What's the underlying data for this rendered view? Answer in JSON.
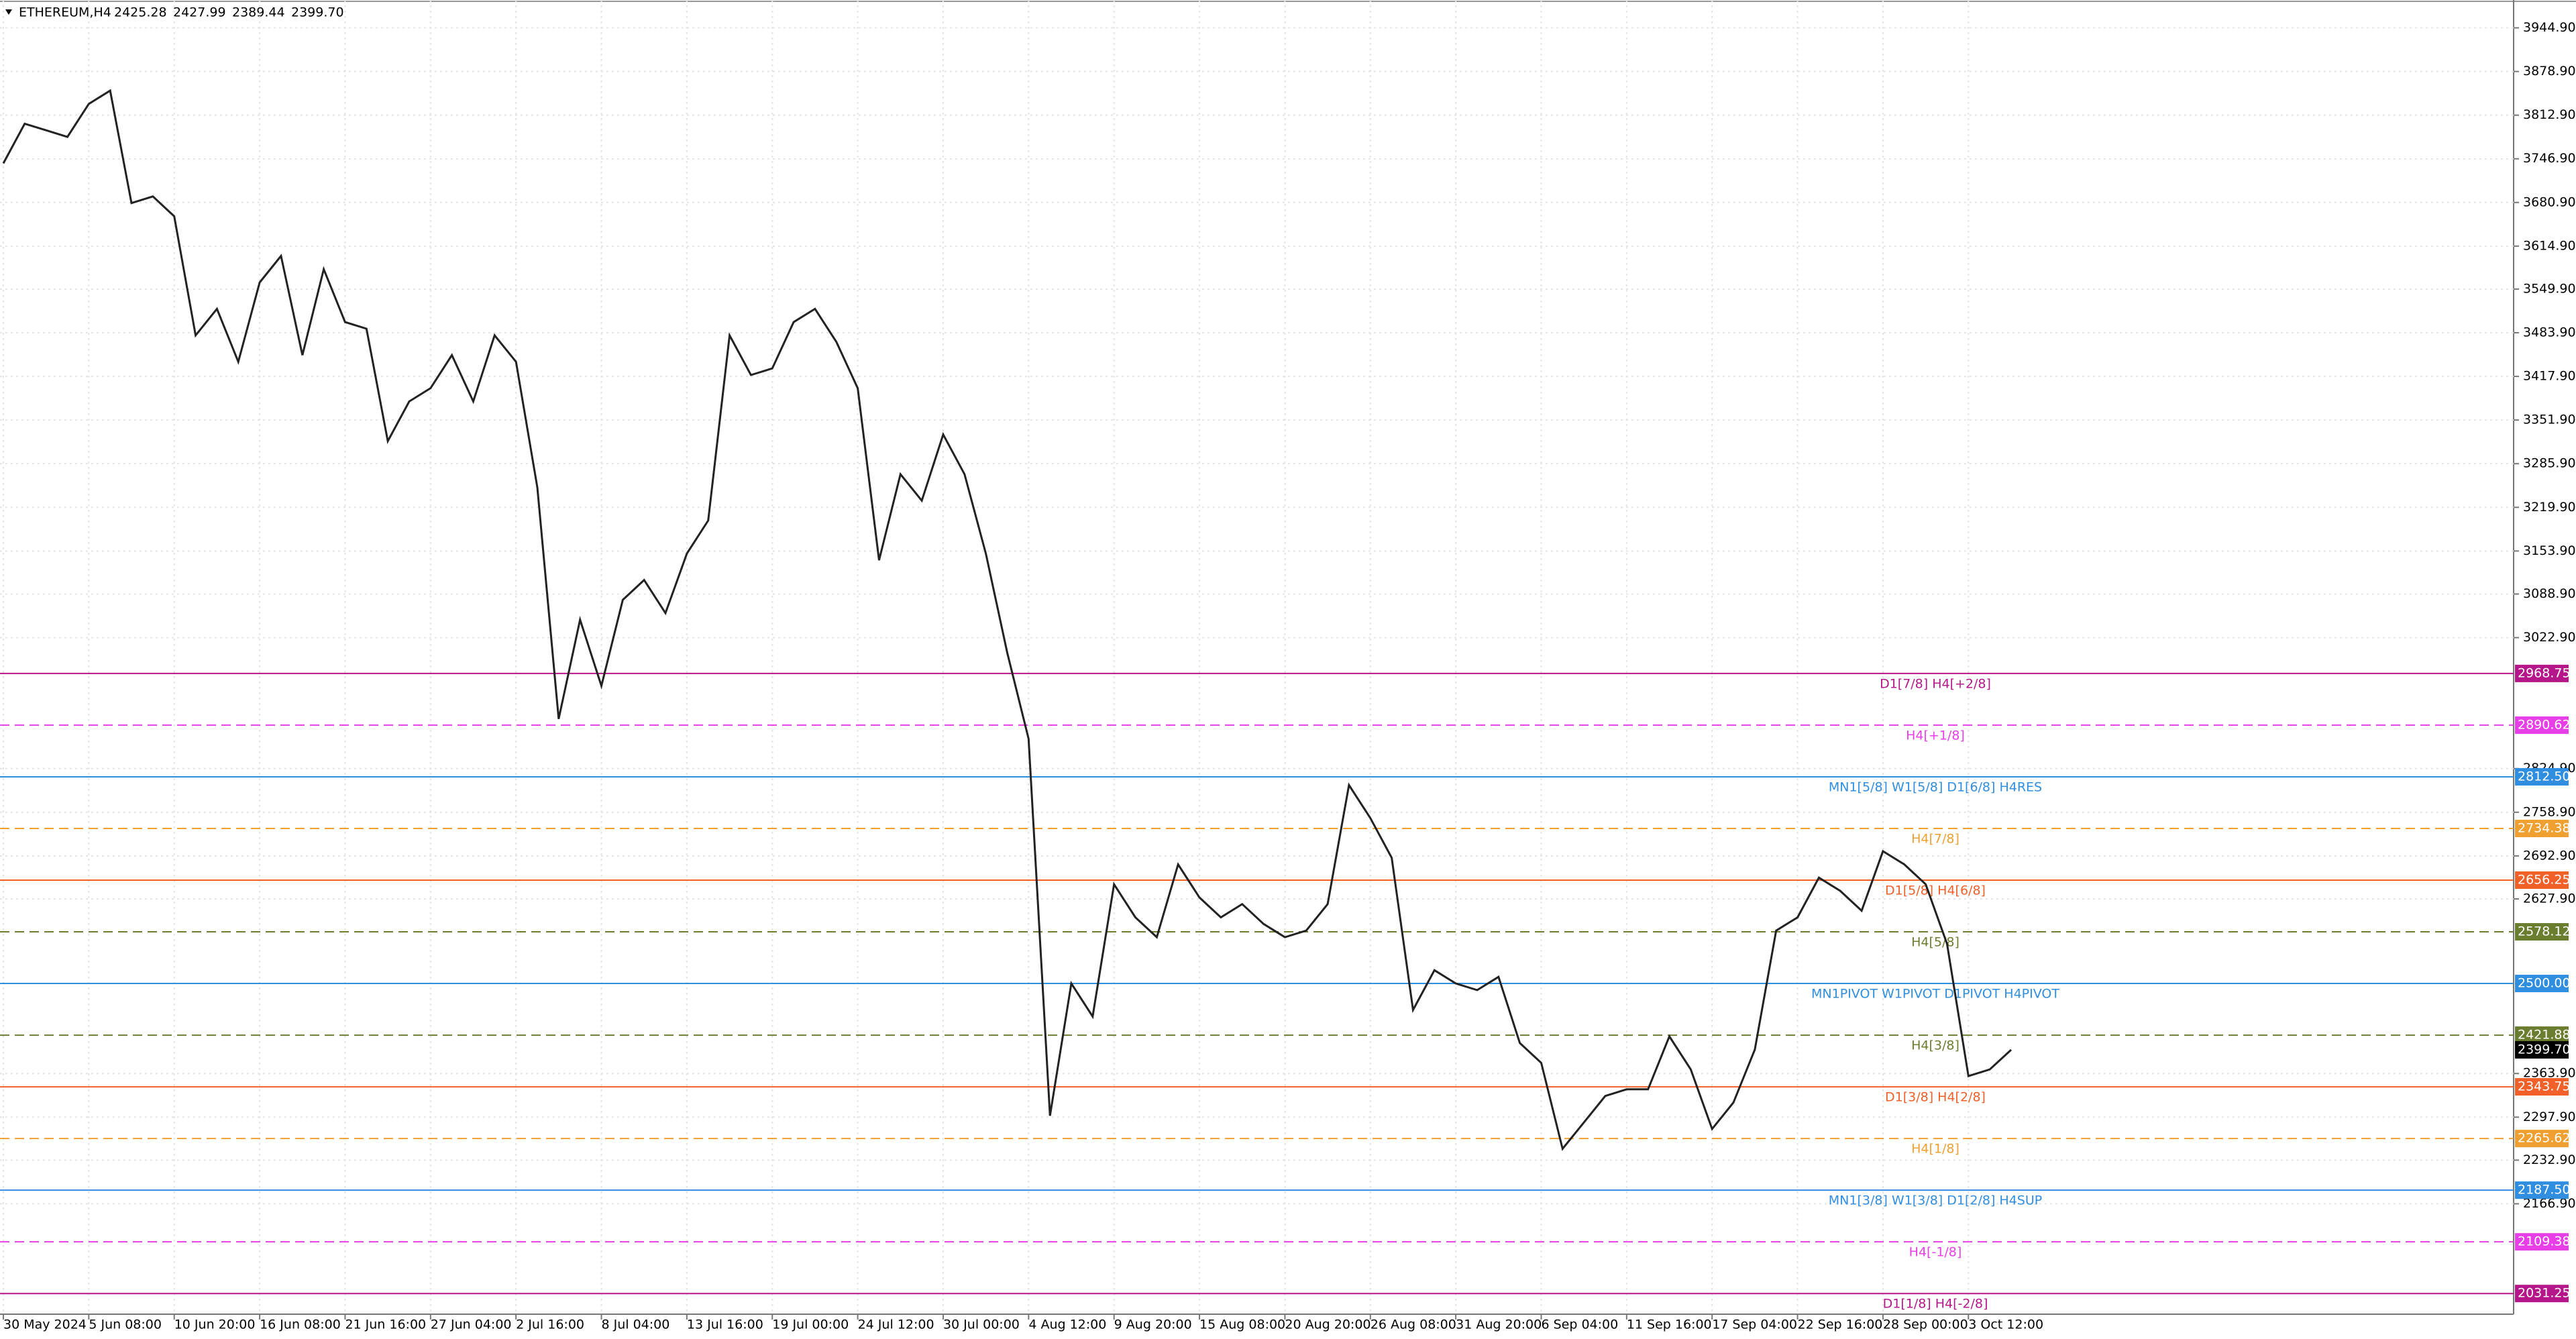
{
  "chart_data": {
    "type": "line",
    "header": {
      "symbol": "ETHEREUM,H4",
      "ohlc": [
        "2425.28",
        "2427.99",
        "2389.44",
        "2399.70"
      ]
    },
    "categories": [
      "30 May 2024",
      null,
      null,
      null,
      "5 Jun 08:00",
      null,
      null,
      null,
      "10 Jun 20:00",
      null,
      null,
      null,
      "16 Jun 08:00",
      null,
      null,
      null,
      "21 Jun 16:00",
      null,
      null,
      null,
      "27 Jun 04:00",
      null,
      null,
      null,
      "2 Jul 16:00",
      null,
      null,
      null,
      "8 Jul 04:00",
      null,
      null,
      null,
      "13 Jul 16:00",
      null,
      null,
      null,
      "19 Jul 00:00",
      null,
      null,
      null,
      "24 Jul 12:00",
      null,
      null,
      null,
      "30 Jul 00:00",
      null,
      null,
      null,
      "4 Aug 12:00",
      null,
      null,
      null,
      "9 Aug 20:00",
      null,
      null,
      null,
      "15 Aug 08:00",
      null,
      null,
      null,
      "20 Aug 20:00",
      null,
      null,
      null,
      "26 Aug 08:00",
      null,
      null,
      null,
      "31 Aug 20:00",
      null,
      null,
      null,
      "6 Sep 04:00",
      null,
      null,
      null,
      "11 Sep 16:00",
      null,
      null,
      null,
      "17 Sep 04:00",
      null,
      null,
      null,
      "22 Sep 16:00",
      null,
      null,
      null,
      "28 Sep 00:00",
      null,
      null,
      null,
      "3 Oct 12:00",
      null,
      null
    ],
    "series": [
      {
        "name": "ETHEREUM,H4",
        "color": "#222222",
        "values": [
          3740,
          3800,
          3790,
          3780,
          3830,
          3850,
          3680,
          3690,
          3660,
          3480,
          3520,
          3440,
          3560,
          3600,
          3450,
          3580,
          3500,
          3490,
          3320,
          3380,
          3400,
          3450,
          3380,
          3480,
          3440,
          3250,
          2900,
          3050,
          2950,
          3080,
          3110,
          3060,
          3150,
          3200,
          3480,
          3420,
          3430,
          3500,
          3520,
          3470,
          3400,
          3140,
          3270,
          3230,
          3330,
          3270,
          3150,
          3000,
          2870,
          2300,
          2500,
          2450,
          2650,
          2600,
          2570,
          2680,
          2630,
          2600,
          2620,
          2590,
          2570,
          2580,
          2620,
          2800,
          2750,
          2690,
          2460,
          2520,
          2500,
          2490,
          2510,
          2410,
          2380,
          2250,
          2290,
          2330,
          2340,
          2340,
          2420,
          2370,
          2280,
          2320,
          2400,
          2580,
          2600,
          2660,
          2640,
          2610,
          2700,
          2680,
          2650,
          2560,
          2360,
          2370,
          2399.7
        ]
      }
    ],
    "ylim": [
      2000,
      3987
    ],
    "yticks": [
      {
        "value": 3944.9,
        "label": "3944.90"
      },
      {
        "value": 3878.9,
        "label": "3878.90"
      },
      {
        "value": 3812.9,
        "label": "3812.90"
      },
      {
        "value": 3746.9,
        "label": "3746.90"
      },
      {
        "value": 3680.9,
        "label": "3680.90"
      },
      {
        "value": 3614.9,
        "label": "3614.90"
      },
      {
        "value": 3549.9,
        "label": "3549.90"
      },
      {
        "value": 3483.9,
        "label": "3483.90"
      },
      {
        "value": 3417.9,
        "label": "3417.90"
      },
      {
        "value": 3351.9,
        "label": "3351.90"
      },
      {
        "value": 3285.9,
        "label": "3285.90"
      },
      {
        "value": 3219.9,
        "label": "3219.90"
      },
      {
        "value": 3153.9,
        "label": "3153.90"
      },
      {
        "value": 3088.9,
        "label": "3088.90"
      },
      {
        "value": 3022.9,
        "label": "3022.90"
      },
      {
        "value": 2824.9,
        "label": "2824.90"
      },
      {
        "value": 2758.9,
        "label": "2758.90"
      },
      {
        "value": 2692.9,
        "label": "2692.90"
      },
      {
        "value": 2627.9,
        "label": "2627.90"
      },
      {
        "value": 2363.9,
        "label": "2363.90"
      },
      {
        "value": 2297.9,
        "label": "2297.90"
      },
      {
        "value": 2232.9,
        "label": "2232.90"
      },
      {
        "value": 2166.9,
        "label": "2166.90"
      }
    ],
    "grid": true,
    "levels": [
      {
        "name": "D1[7/8] H4[+2/8]",
        "price": 2968.75,
        "color": "#b5178a",
        "dash": false
      },
      {
        "name": "H4[+1/8]",
        "price": 2890.62,
        "color": "#e83ee8",
        "dash": true
      },
      {
        "name": "MN1[5/8] W1[5/8] D1[6/8] H4RES",
        "price": {
          "value": 2812.5,
          "label": "2812.50"
        },
        "color": "#2f8ee0",
        "dash": false
      },
      {
        "name": "H4[7/8]",
        "price": 2734.38,
        "color": "#f0a030",
        "dash": true
      },
      {
        "name": "D1[5/8] H4[6/8]",
        "price": 2656.25,
        "color": "#f06028",
        "dash": false
      },
      {
        "name": "H4[5/8]",
        "price": 2578.12,
        "color": "#6b7d2e",
        "dash": true
      },
      {
        "name": "MN1PIVOT W1PIVOT D1PIVOT H4PIVOT",
        "price": {
          "value": 2500,
          "label": "2500.00"
        },
        "color": "#2f8ee0",
        "dash": false
      },
      {
        "name": "H4[3/8]",
        "price": 2421.88,
        "color": "#6b7d2e",
        "dash": true
      },
      {
        "name": "D1[3/8] H4[2/8]",
        "price": 2343.75,
        "color": "#f06028",
        "dash": false
      },
      {
        "name": "H4[1/8]",
        "price": 2265.62,
        "color": "#f0a030",
        "dash": true
      },
      {
        "name": "MN1[3/8] W1[3/8] D1[2/8] H4SUP",
        "price": {
          "value": 2187.5,
          "label": "2187.50"
        },
        "color": "#2f8ee0",
        "dash": false
      },
      {
        "name": "H4[-1/8]",
        "price": 2109.38,
        "color": "#e83ee8",
        "dash": true
      },
      {
        "name": "D1[1/8] H4[-2/8]",
        "price": 2031.25,
        "color": "#b5178a",
        "dash": false
      }
    ],
    "last_price": {
      "value": 2399.7,
      "label": "2399.70"
    }
  }
}
